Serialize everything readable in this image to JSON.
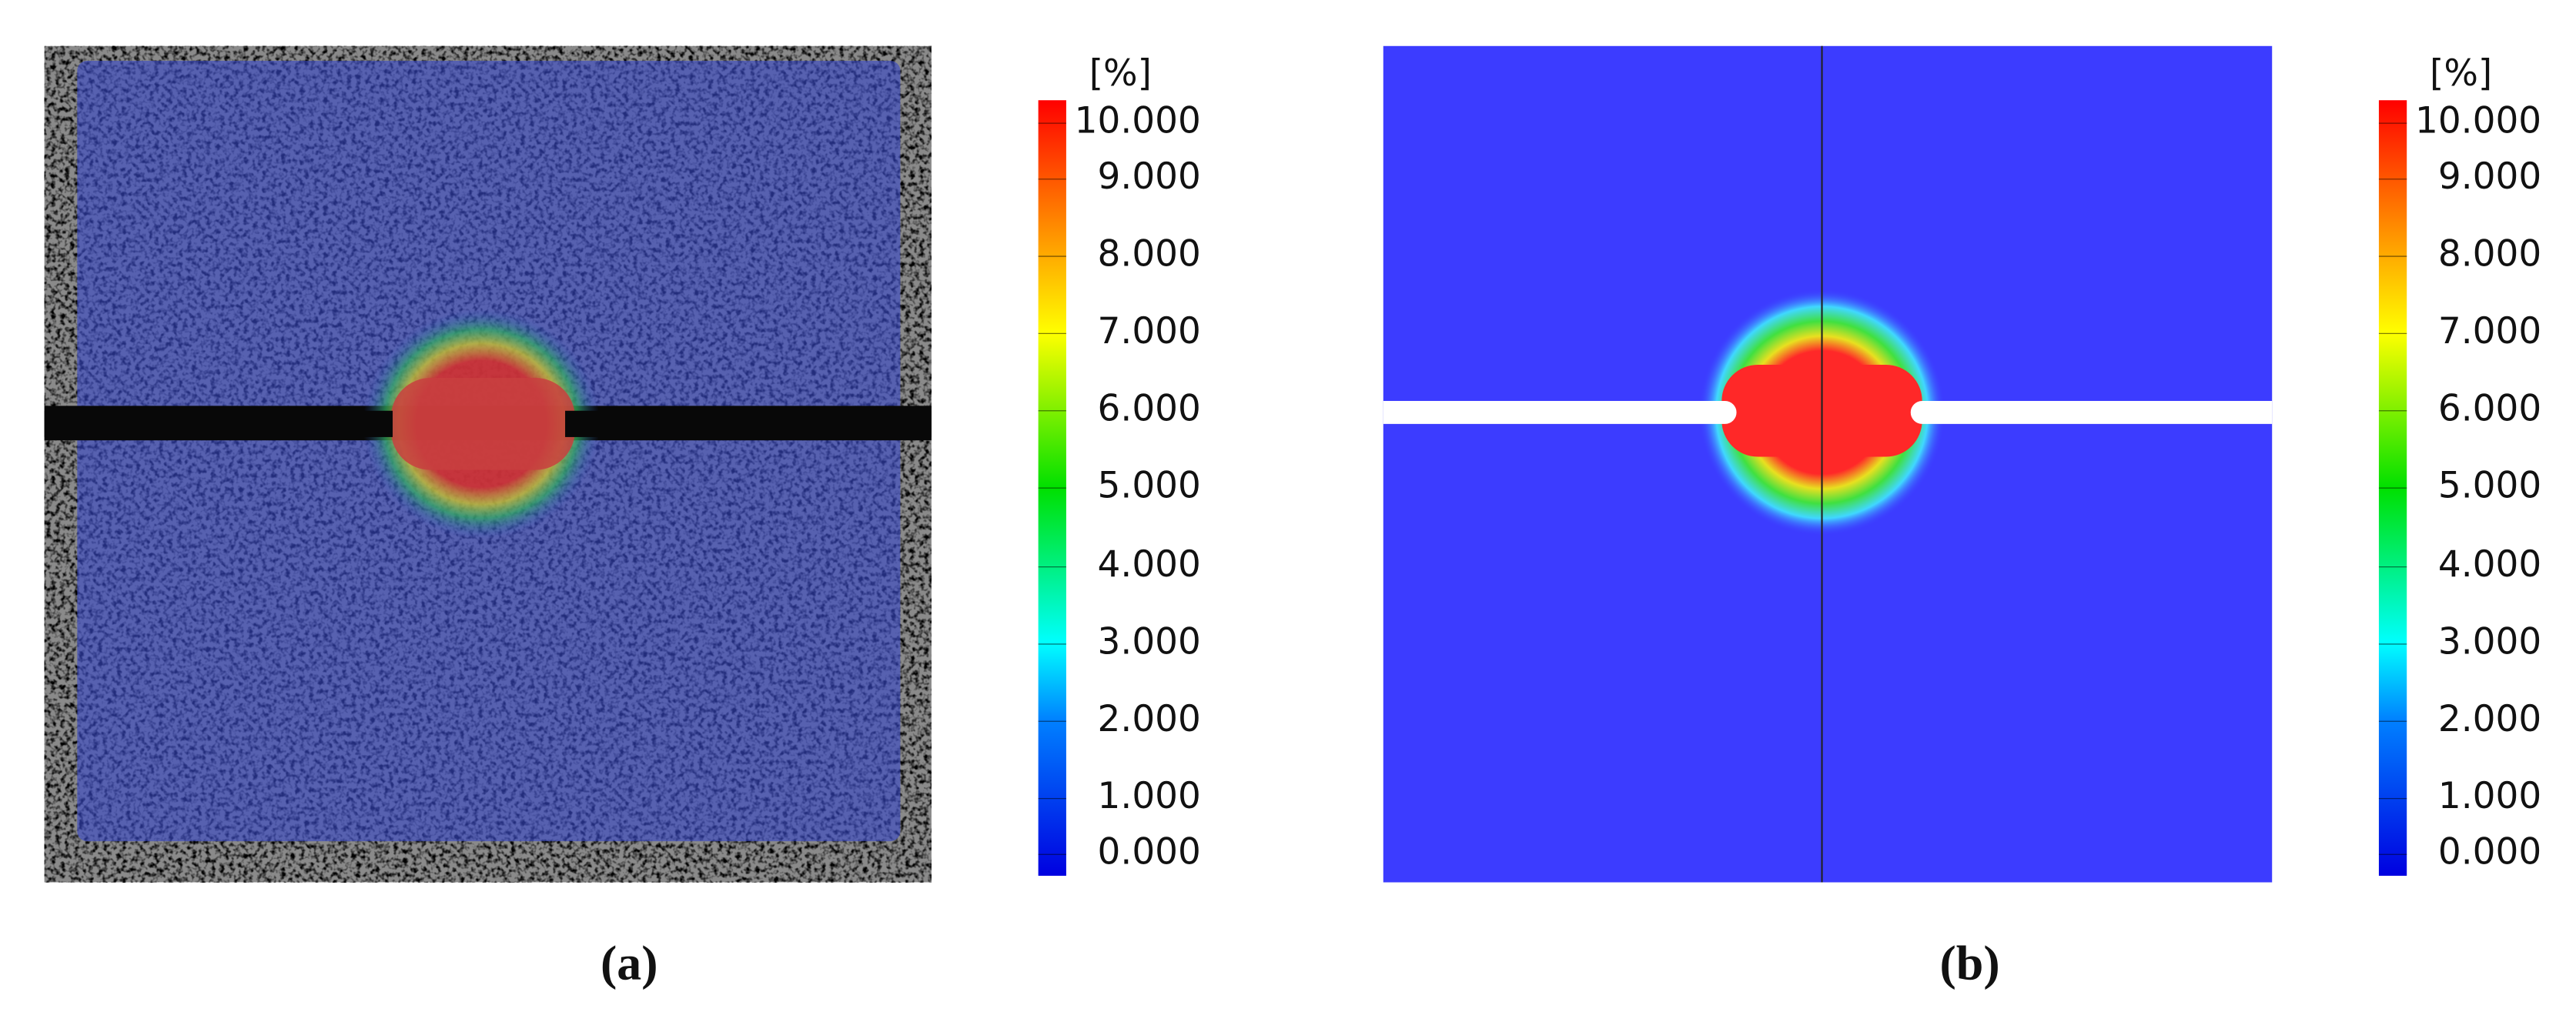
{
  "panels": [
    {
      "label": "(a)",
      "colorbar": {
        "unit": "[%]",
        "ticks": [
          "10.000",
          "9.000",
          "8.000",
          "7.000",
          "6.000",
          "5.000",
          "4.000",
          "3.000",
          "2.000",
          "1.000",
          "0.000"
        ]
      }
    },
    {
      "label": "(b)",
      "colorbar": {
        "unit": "[%]",
        "ticks": [
          "10.000",
          "9.000",
          "8.000",
          "7.000",
          "6.000",
          "5.000",
          "4.000",
          "3.000",
          "2.000",
          "1.000",
          "0.000"
        ]
      }
    }
  ]
}
